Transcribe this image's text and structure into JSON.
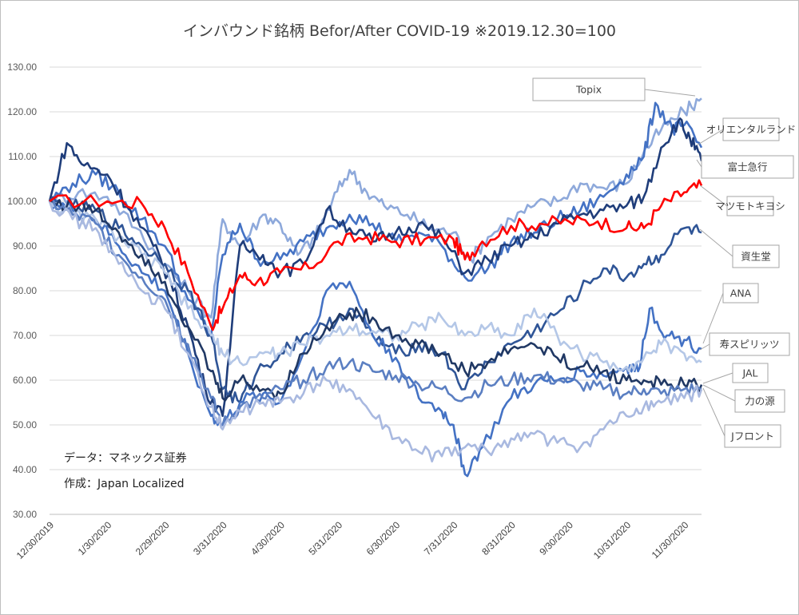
{
  "chart_data": {
    "type": "line",
    "title": "インバウンド銘柄 Befor/After COVID-19 ※2019.12.30=100",
    "xlabel": "",
    "ylabel": "",
    "ylim": [
      30,
      130
    ],
    "y_ticks": [
      "30.00",
      "40.00",
      "50.00",
      "60.00",
      "70.00",
      "80.00",
      "90.00",
      "100.00",
      "110.00",
      "120.00",
      "130.00"
    ],
    "x_ticks": [
      "12/30/2019",
      "1/30/2020",
      "2/29/2020",
      "3/31/2020",
      "4/30/2020",
      "5/31/2020",
      "6/30/2020",
      "7/31/2020",
      "8/31/2020",
      "9/30/2020",
      "10/31/2020",
      "11/30/2020"
    ],
    "grid": "horizontal",
    "legend": "callouts-right",
    "notes": [
      "データ：マネックス証券",
      "作成：Japan Localized"
    ],
    "series": [
      {
        "name": "Topix",
        "color": "#ff0000",
        "width": 2.6,
        "x": [
          0,
          1,
          1.6,
          2,
          2.4,
          2.8,
          3,
          3.3,
          3.6,
          4,
          4.5,
          5,
          5.5,
          6,
          6.5,
          7,
          7.2,
          7.5,
          8,
          8.5,
          9,
          9.5,
          10,
          10.3,
          10.6,
          11,
          11.3
        ],
        "values": [
          100,
          100,
          99.5,
          94,
          84,
          72,
          76,
          83.5,
          82,
          84,
          85,
          91,
          92,
          91,
          91.5,
          91.5,
          87,
          91,
          94.5,
          95,
          95.5,
          95.5,
          94,
          94,
          99,
          102,
          103.5
        ]
      },
      {
        "name": "オリエンタルランド",
        "color": "#8ea9db",
        "width": 2.6,
        "x": [
          0,
          0.5,
          1,
          1.5,
          2,
          2.4,
          2.8,
          3,
          3.3,
          3.7,
          4,
          4.3,
          4.6,
          4.9,
          5.2,
          5.5,
          5.8,
          6.2,
          6.6,
          7,
          7.3,
          7.6,
          8,
          8.4,
          8.8,
          9.2,
          9.6,
          10,
          10.3,
          10.6,
          11,
          11.3
        ],
        "values": [
          100,
          102,
          101,
          94,
          86,
          80,
          74,
          96,
          90,
          97,
          95,
          88,
          92,
          100,
          107,
          102,
          99,
          97,
          94,
          93,
          87,
          92,
          96,
          99,
          100,
          104,
          103,
          104,
          111,
          116,
          120,
          123
        ]
      },
      {
        "name": "富士急行",
        "color": "#4472c4",
        "width": 2.6,
        "x": [
          0,
          0.4,
          0.8,
          1.2,
          1.6,
          2,
          2.4,
          2.8,
          3,
          3.3,
          3.6,
          4,
          4.4,
          4.8,
          5.2,
          5.6,
          6,
          6.4,
          6.8,
          7.2,
          7.6,
          8,
          8.4,
          8.8,
          9.2,
          9.6,
          10,
          10.3,
          10.5,
          10.8,
          11,
          11.3
        ],
        "values": [
          100,
          104,
          106,
          102,
          96,
          90,
          78,
          70,
          88,
          95,
          87,
          87,
          91,
          94,
          97,
          95,
          91,
          93,
          90,
          83,
          85,
          91,
          93,
          96,
          98,
          101,
          106,
          110,
          122,
          116,
          117,
          112
        ]
      },
      {
        "name": "マツモトキヨシ",
        "color": "#1f3d7a",
        "width": 2.6,
        "x": [
          0,
          0.3,
          0.6,
          1,
          1.4,
          1.8,
          2.1,
          2.4,
          2.7,
          3,
          3.3,
          3.7,
          4,
          4.4,
          4.8,
          5.2,
          5.6,
          6,
          6.4,
          6.8,
          7.2,
          7.6,
          8,
          8.4,
          8.8,
          9.2,
          9.6,
          10,
          10.3,
          10.6,
          10.9,
          11.1,
          11.3
        ],
        "values": [
          100,
          113,
          108,
          106,
          98,
          90,
          82,
          72,
          58,
          52,
          90,
          88,
          84,
          86,
          98,
          94,
          91,
          93,
          95,
          92,
          84,
          87,
          90,
          92,
          95,
          97,
          98,
          99,
          101,
          112,
          118,
          114,
          109
        ]
      },
      {
        "name": "資生堂",
        "color": "#2f5597",
        "width": 2.6,
        "x": [
          0,
          0.4,
          0.8,
          1.2,
          1.6,
          2,
          2.4,
          2.8,
          3,
          3.3,
          3.6,
          4,
          4.4,
          4.8,
          5.2,
          5.6,
          6,
          6.4,
          6.8,
          7.2,
          7.6,
          8,
          8.4,
          8.8,
          9.2,
          9.6,
          10,
          10.3,
          10.6,
          11,
          11.3
        ],
        "values": [
          100,
          99,
          98,
          94,
          90,
          86,
          80,
          70,
          58,
          55,
          62,
          66,
          70,
          72,
          76,
          70,
          66,
          68,
          66,
          58,
          64,
          68,
          71,
          75,
          80,
          85,
          83,
          86,
          88,
          94,
          93
        ]
      },
      {
        "name": "ANA",
        "color": "#4472c4",
        "width": 2.6,
        "x": [
          0,
          0.4,
          0.8,
          1.2,
          1.6,
          2,
          2.4,
          2.8,
          3,
          3.3,
          3.7,
          4,
          4.4,
          4.8,
          5.2,
          5.6,
          6,
          6.4,
          6.8,
          7,
          7.2,
          7.5,
          8,
          8.4,
          8.8,
          9.2,
          9.6,
          10,
          10.2,
          10.4,
          10.7,
          11,
          11.3
        ],
        "values": [
          100,
          98,
          96,
          90,
          84,
          80,
          66,
          52,
          50,
          55,
          57,
          55,
          66,
          80,
          82,
          70,
          65,
          56,
          53,
          50,
          39,
          45,
          56,
          59,
          60,
          62,
          61,
          63,
          62,
          76,
          70,
          69,
          67
        ]
      },
      {
        "name": "寿スピリッツ",
        "color": "#b4c7e7",
        "width": 2.6,
        "x": [
          0,
          0.4,
          0.8,
          1.2,
          1.6,
          2,
          2.4,
          2.8,
          3,
          3.3,
          3.7,
          4,
          4.4,
          4.8,
          5.2,
          5.6,
          6,
          6.4,
          6.8,
          7.2,
          7.6,
          8,
          8.4,
          8.8,
          9.2,
          9.6,
          10,
          10.3,
          10.6,
          11,
          11.3
        ],
        "values": [
          100,
          97,
          96,
          92,
          88,
          84,
          76,
          70,
          66,
          64,
          66,
          66,
          68,
          70,
          72,
          71,
          70,
          72,
          74,
          70,
          72,
          70,
          76,
          70,
          66,
          64,
          63,
          65,
          68,
          66,
          64
        ]
      },
      {
        "name": "JAL",
        "color": "#203864",
        "width": 2.6,
        "x": [
          0,
          0.4,
          0.8,
          1.2,
          1.6,
          2,
          2.4,
          2.8,
          3,
          3.3,
          3.7,
          4,
          4.4,
          4.8,
          5.2,
          5.6,
          6,
          6.4,
          6.8,
          7.2,
          7.6,
          8,
          8.4,
          8.8,
          9.2,
          9.6,
          10,
          10.3,
          10.6,
          11,
          11.3
        ],
        "values": [
          100,
          99,
          98,
          93,
          88,
          82,
          72,
          62,
          56,
          60,
          58,
          57,
          66,
          72,
          75,
          74,
          70,
          68,
          66,
          62,
          64,
          67,
          68,
          65,
          63,
          62,
          60,
          60,
          59,
          59,
          59
        ]
      },
      {
        "name": "力の源",
        "color": "#5b7fc2",
        "width": 2.6,
        "x": [
          0,
          0.4,
          0.8,
          1.2,
          1.6,
          2,
          2.4,
          2.8,
          3,
          3.3,
          3.7,
          4,
          4.4,
          4.8,
          5.2,
          5.6,
          6,
          6.4,
          6.8,
          7.2,
          7.6,
          8,
          8.4,
          8.8,
          9.2,
          9.6,
          10,
          10.3,
          10.6,
          11,
          11.3
        ],
        "values": [
          100,
          97,
          95,
          88,
          83,
          78,
          68,
          56,
          50,
          54,
          56,
          58,
          60,
          63,
          64,
          62,
          61,
          59,
          58,
          56,
          59,
          60,
          61,
          60,
          59,
          58,
          57,
          58,
          57,
          58,
          58
        ]
      },
      {
        "name": "Jフロント",
        "color": "#a9b9e0",
        "width": 2.6,
        "x": [
          0,
          0.4,
          0.8,
          1.2,
          1.6,
          2,
          2.4,
          2.8,
          3,
          3.3,
          3.7,
          4,
          4.4,
          4.8,
          5.2,
          5.6,
          6,
          6.4,
          6.8,
          7.2,
          7.6,
          8,
          8.4,
          8.8,
          9.2,
          9.6,
          10,
          10.3,
          10.6,
          11,
          11.3
        ],
        "values": [
          100,
          96,
          94,
          86,
          80,
          76,
          66,
          54,
          49,
          53,
          55,
          55,
          57,
          60,
          58,
          52,
          47,
          44,
          43,
          45,
          44,
          47,
          48,
          46,
          45,
          49,
          52,
          54,
          55,
          56,
          58
        ]
      }
    ]
  }
}
